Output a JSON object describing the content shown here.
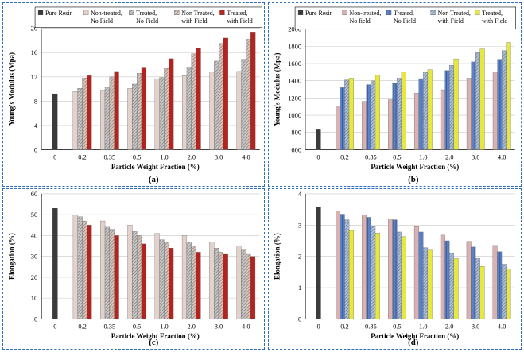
{
  "colors": {
    "panel_border": "#2f6fb7",
    "pure_resin": "#3b3b3b",
    "ac_non_treated_no_field": "#e3d2cc",
    "ac_treated_no_field": "#c9c9c9",
    "ac_non_treated_with_field": "#dcc7bd",
    "ac_treated_with_field": "#b5231e",
    "bd_non_treated_no_field": "#d9b1b1",
    "bd_treated_no_field": "#5b82c7",
    "bd_non_treated_with_field": "#a9c1e6",
    "bd_treated_with_field": "#e7e83d"
  },
  "chart_data": [
    {
      "type": "bar",
      "panel_label": "(a)",
      "xlabel": "Particle Weight Fraction (%)",
      "ylabel": "Young's Modulus (Mpa)",
      "ylim": [
        0,
        20
      ],
      "yticks": [
        "0",
        "4",
        "8",
        "12",
        "16",
        "20"
      ],
      "grid": true,
      "legend_position": "top",
      "legend": [
        "Pure Resin",
        "Non-treated, No Field",
        "Treated, No Field",
        "Non Treated, with Field",
        "Treated, with Field"
      ],
      "categories": [
        "0",
        "0.2",
        "0.35",
        "0.5",
        "1.0",
        "2.0",
        "3.0",
        "4.0"
      ],
      "pure_resin": 9.2,
      "series": [
        {
          "name": "Non-treated, No Field",
          "values": [
            null,
            9.6,
            9.8,
            10.1,
            11.7,
            12.2,
            12.8,
            12.9
          ]
        },
        {
          "name": "Treated, No Field",
          "values": [
            null,
            10.1,
            10.3,
            10.8,
            11.9,
            13.6,
            14.6,
            14.9
          ]
        },
        {
          "name": "Non Treated, with Field",
          "values": [
            null,
            11.8,
            12.0,
            12.6,
            13.4,
            15.8,
            17.5,
            18.2
          ]
        },
        {
          "name": "Treated, with Field",
          "values": [
            null,
            12.2,
            12.9,
            13.6,
            15.0,
            16.7,
            18.4,
            19.4
          ]
        }
      ]
    },
    {
      "type": "bar",
      "panel_label": "(b)",
      "xlabel": "Particle Weight Fraction (%)",
      "ylabel": "Young's Modulus (Mpa)",
      "ylim": [
        600,
        2000
      ],
      "yticks": [
        "600",
        "800",
        "1000",
        "1200",
        "1400",
        "1600",
        "1800",
        "2000"
      ],
      "grid": true,
      "legend_position": "top",
      "legend": [
        "Pure Resin",
        "Non-treated, No field",
        "Treated, No Field",
        "Non Treated, with Field",
        "Treated, with Field"
      ],
      "categories": [
        "0",
        "0.2",
        "0.35",
        "0.5",
        "1.0",
        "2.0",
        "3.0",
        "4.0"
      ],
      "pure_resin": 840,
      "series": [
        {
          "name": "Non-treated, No field",
          "values": [
            null,
            1110,
            1160,
            1180,
            1255,
            1295,
            1430,
            1500
          ]
        },
        {
          "name": "Treated, No Field",
          "values": [
            null,
            1320,
            1355,
            1370,
            1425,
            1520,
            1620,
            1650
          ]
        },
        {
          "name": "Non Treated, with Field",
          "values": [
            null,
            1410,
            1400,
            1430,
            1500,
            1580,
            1730,
            1750
          ]
        },
        {
          "name": "Treated, with Field",
          "values": [
            null,
            1430,
            1470,
            1500,
            1530,
            1655,
            1770,
            1845
          ]
        }
      ]
    },
    {
      "type": "bar",
      "panel_label": "(c)",
      "xlabel": "Particle Weight Fraction (%)",
      "ylabel": "Elongation (%)",
      "ylim": [
        0,
        60
      ],
      "yticks": [
        "0",
        "10",
        "20",
        "30",
        "40",
        "50",
        "60"
      ],
      "grid": true,
      "categories": [
        "0",
        "0.2",
        "0.35",
        "0.5",
        "1.0",
        "2.0",
        "3.0",
        "4.0"
      ],
      "pure_resin": 53,
      "series": [
        {
          "name": "Non-treated, No Field",
          "values": [
            null,
            50,
            47,
            45,
            41,
            40,
            37,
            35
          ]
        },
        {
          "name": "Treated, No Field",
          "values": [
            null,
            49,
            44,
            42,
            38,
            37,
            34,
            33
          ]
        },
        {
          "name": "Non Treated, with Field",
          "values": [
            null,
            47,
            43,
            40,
            37,
            35,
            32,
            31
          ]
        },
        {
          "name": "Treated, with Field",
          "values": [
            null,
            45,
            40,
            36,
            34,
            32,
            31,
            30
          ]
        }
      ]
    },
    {
      "type": "bar",
      "panel_label": "(d)",
      "xlabel": "Particle Weight Fraction (%)",
      "ylabel": "Elongation (%)",
      "ylim": [
        0,
        4
      ],
      "yticks": [
        "0",
        "1",
        "2",
        "3",
        "4"
      ],
      "grid": true,
      "categories": [
        "0",
        "0.2",
        "0.35",
        "0.5",
        "1.0",
        "2.0",
        "3.0",
        "4.0"
      ],
      "pure_resin": 3.57,
      "series": [
        {
          "name": "Non-treated, No field",
          "values": [
            null,
            3.45,
            3.33,
            3.2,
            2.95,
            2.68,
            2.48,
            2.35
          ]
        },
        {
          "name": "Treated, No Field",
          "values": [
            null,
            3.35,
            3.25,
            3.17,
            2.78,
            2.5,
            2.3,
            2.15
          ]
        },
        {
          "name": "Non Treated, with Field",
          "values": [
            null,
            3.17,
            2.95,
            2.78,
            2.28,
            2.1,
            1.93,
            1.75
          ]
        },
        {
          "name": "Treated, with Field",
          "values": [
            null,
            2.83,
            2.75,
            2.63,
            2.2,
            1.93,
            1.68,
            1.6
          ]
        }
      ]
    }
  ]
}
